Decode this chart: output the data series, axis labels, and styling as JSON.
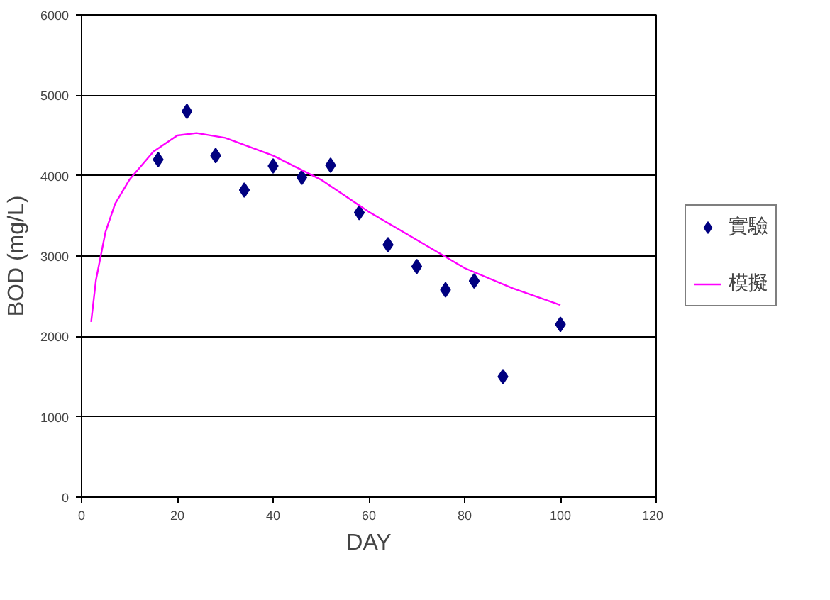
{
  "chart_data": {
    "type": "scatter",
    "xlabel": "DAY",
    "ylabel": "BOD (mg/L)",
    "xlim": [
      0,
      120
    ],
    "xticks": [
      0,
      20,
      40,
      60,
      80,
      100,
      120
    ],
    "ylim": [
      0,
      6000
    ],
    "yticks": [
      0,
      1000,
      2000,
      3000,
      4000,
      5000,
      6000
    ],
    "grid": "y",
    "legend": "right",
    "series": [
      {
        "name": "實驗",
        "marker": "diamond",
        "color": "#000080",
        "x": [
          16,
          22,
          28,
          34,
          40,
          46,
          52,
          58,
          64,
          70,
          76,
          82,
          88,
          100
        ],
        "values": [
          4200,
          4800,
          4250,
          3820,
          4120,
          3980,
          4130,
          3540,
          3140,
          2870,
          2580,
          2690,
          1500,
          2150
        ]
      },
      {
        "name": "模擬",
        "type": "line",
        "marker": "none",
        "color": "#ff00ff",
        "x": [
          2,
          3,
          5,
          7,
          10,
          15,
          20,
          24,
          30,
          40,
          50,
          60,
          70,
          80,
          90,
          100
        ],
        "values": [
          2180,
          2700,
          3300,
          3650,
          3950,
          4300,
          4500,
          4530,
          4470,
          4250,
          3950,
          3550,
          3200,
          2850,
          2600,
          2390
        ]
      }
    ]
  }
}
